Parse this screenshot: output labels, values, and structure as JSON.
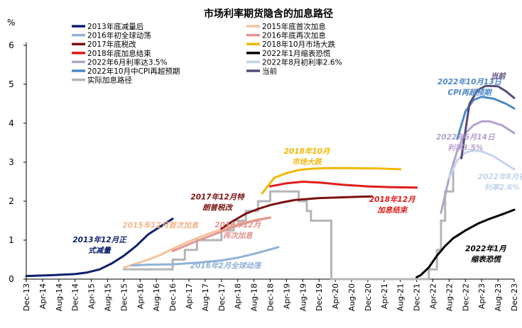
{
  "chart_data": {
    "type": "line",
    "title": "市场利率期货隐含的加息路径",
    "ylabel": "%",
    "ylim": [
      0,
      6
    ],
    "yticks": [
      "0",
      "1",
      "2",
      "3",
      "4",
      "5",
      "6"
    ],
    "xlim": [
      "2013-12",
      "2023-12"
    ],
    "xticks": [
      "Dec-13",
      "Apr-14",
      "Aug-14",
      "Dec-14",
      "Apr-15",
      "Aug-15",
      "Dec-15",
      "Apr-16",
      "Aug-16",
      "Dec-16",
      "Apr-17",
      "Aug-17",
      "Dec-17",
      "Apr-18",
      "Aug-18",
      "Dec-18",
      "Apr-19",
      "Aug-19",
      "Dec-19",
      "Apr-20",
      "Aug-20",
      "Dec-20",
      "Apr-21",
      "Aug-21",
      "Dec-21",
      "Apr-22",
      "Aug-22",
      "Dec-22",
      "Apr-23",
      "Aug-23",
      "Dec-23"
    ],
    "grid": false,
    "legend_position": "top-left",
    "series": [
      {
        "name": "2013年底减量后",
        "color": "#0d1f6d",
        "width": 3,
        "points": [
          [
            "2013-12",
            0.08
          ],
          [
            "2014-06",
            0.1
          ],
          [
            "2014-12",
            0.13
          ],
          [
            "2015-03",
            0.17
          ],
          [
            "2015-06",
            0.25
          ],
          [
            "2015-09",
            0.4
          ],
          [
            "2015-12",
            0.6
          ],
          [
            "2016-03",
            0.85
          ],
          [
            "2016-06",
            1.15
          ],
          [
            "2016-09",
            1.35
          ],
          [
            "2016-12",
            1.55
          ]
        ]
      },
      {
        "name": "2015年底首次加息",
        "color": "#f5c29a",
        "width": 3,
        "points": [
          [
            "2015-12",
            0.3
          ],
          [
            "2016-03",
            0.4
          ],
          [
            "2016-06",
            0.5
          ],
          [
            "2016-09",
            0.62
          ],
          [
            "2016-12",
            0.78
          ],
          [
            "2017-03",
            0.92
          ],
          [
            "2017-06",
            1.05
          ],
          [
            "2017-09",
            1.17
          ],
          [
            "2017-12",
            1.28
          ],
          [
            "2018-03",
            1.38
          ],
          [
            "2018-06",
            1.46
          ],
          [
            "2018-09",
            1.53
          ],
          [
            "2018-12",
            1.58
          ]
        ]
      },
      {
        "name": "2016年初全球动荡",
        "color": "#8fb1d6",
        "width": 3,
        "points": [
          [
            "2016-02",
            0.35
          ],
          [
            "2016-06",
            0.37
          ],
          [
            "2016-12",
            0.38
          ],
          [
            "2017-06",
            0.42
          ],
          [
            "2017-12",
            0.48
          ],
          [
            "2018-04",
            0.55
          ],
          [
            "2018-08",
            0.65
          ],
          [
            "2019-02",
            0.82
          ]
        ]
      },
      {
        "name": "2016年底再次加息",
        "color": "#e29490",
        "width": 3,
        "points": [
          [
            "2016-12",
            0.72
          ],
          [
            "2017-03",
            0.85
          ],
          [
            "2017-06",
            0.98
          ],
          [
            "2017-09",
            1.1
          ],
          [
            "2017-12",
            1.22
          ],
          [
            "2018-03",
            1.34
          ],
          [
            "2018-06",
            1.44
          ],
          [
            "2018-09",
            1.52
          ],
          [
            "2018-12",
            1.58
          ]
        ]
      },
      {
        "name": "2017年底税改",
        "color": "#7a1111",
        "width": 3,
        "points": [
          [
            "2017-12",
            1.3
          ],
          [
            "2018-03",
            1.5
          ],
          [
            "2018-06",
            1.68
          ],
          [
            "2018-09",
            1.8
          ],
          [
            "2018-12",
            1.9
          ],
          [
            "2019-03",
            1.97
          ],
          [
            "2019-06",
            2.03
          ],
          [
            "2019-12",
            2.08
          ],
          [
            "2020-06",
            2.1
          ],
          [
            "2020-12",
            2.12
          ],
          [
            "2021-01",
            2.12
          ]
        ]
      },
      {
        "name": "2018年10月市场大跌",
        "color": "#f2b705",
        "width": 3,
        "points": [
          [
            "2018-10",
            2.2
          ],
          [
            "2019-01",
            2.6
          ],
          [
            "2019-04",
            2.72
          ],
          [
            "2019-07",
            2.8
          ],
          [
            "2019-10",
            2.83
          ],
          [
            "2020-02",
            2.85
          ],
          [
            "2020-08",
            2.85
          ],
          [
            "2021-02",
            2.84
          ],
          [
            "2021-08",
            2.82
          ]
        ]
      },
      {
        "name": "2018年底加息结束",
        "color": "#e21b1b",
        "width": 3,
        "points": [
          [
            "2018-12",
            2.38
          ],
          [
            "2019-04",
            2.46
          ],
          [
            "2019-08",
            2.5
          ],
          [
            "2019-12",
            2.48
          ],
          [
            "2020-06",
            2.42
          ],
          [
            "2020-12",
            2.38
          ],
          [
            "2021-06",
            2.36
          ],
          [
            "2021-12",
            2.35
          ]
        ]
      },
      {
        "name": "2022年1月缩表恐慌",
        "color": "#000000",
        "width": 3,
        "points": [
          [
            "2021-12",
            0.05
          ],
          [
            "2022-01",
            0.1
          ],
          [
            "2022-03",
            0.3
          ],
          [
            "2022-05",
            0.6
          ],
          [
            "2022-07",
            0.85
          ],
          [
            "2022-09",
            1.05
          ],
          [
            "2022-12",
            1.25
          ],
          [
            "2023-03",
            1.42
          ],
          [
            "2023-06",
            1.55
          ],
          [
            "2023-09",
            1.66
          ],
          [
            "2023-12",
            1.78
          ]
        ]
      },
      {
        "name": "2022年6月利率达3.5%",
        "color": "#b3a2cc",
        "width": 3,
        "points": [
          [
            "2022-06",
            1.7
          ],
          [
            "2022-08",
            2.6
          ],
          [
            "2022-10",
            3.3
          ],
          [
            "2022-12",
            3.75
          ],
          [
            "2023-02",
            3.95
          ],
          [
            "2023-04",
            4.05
          ],
          [
            "2023-06",
            4.05
          ],
          [
            "2023-09",
            3.95
          ],
          [
            "2023-12",
            3.75
          ]
        ]
      },
      {
        "name": "2022年8月初利率2.6%",
        "color": "#c3d4ea",
        "width": 3,
        "points": [
          [
            "2022-08",
            2.6
          ],
          [
            "2022-10",
            3.05
          ],
          [
            "2022-12",
            3.25
          ],
          [
            "2023-02",
            3.3
          ],
          [
            "2023-04",
            3.28
          ],
          [
            "2023-07",
            3.15
          ],
          [
            "2023-10",
            2.95
          ],
          [
            "2023-12",
            2.82
          ]
        ]
      },
      {
        "name": "2022年10月中CPI再超预期",
        "color": "#4c88c8",
        "width": 3,
        "points": [
          [
            "2022-10",
            3.6
          ],
          [
            "2022-12",
            4.3
          ],
          [
            "2023-02",
            4.6
          ],
          [
            "2023-04",
            4.68
          ],
          [
            "2023-07",
            4.63
          ],
          [
            "2023-10",
            4.5
          ],
          [
            "2023-12",
            4.38
          ]
        ]
      },
      {
        "name": "当前",
        "color": "#5a4a7a",
        "width": 3,
        "points": [
          [
            "2022-11",
            3.1
          ],
          [
            "2022-12",
            3.8
          ],
          [
            "2023-01",
            4.5
          ],
          [
            "2023-03",
            4.85
          ],
          [
            "2023-05",
            4.96
          ],
          [
            "2023-08",
            4.95
          ],
          [
            "2023-10",
            4.82
          ],
          [
            "2023-12",
            4.65
          ]
        ]
      },
      {
        "name": "实际加息路径",
        "color": "#b5b5b5",
        "width": 3,
        "step": true,
        "points": [
          [
            "2015-12",
            0.25
          ],
          [
            "2016-12",
            0.25
          ],
          [
            "2016-12",
            0.5
          ],
          [
            "2017-03",
            0.5
          ],
          [
            "2017-03",
            0.75
          ],
          [
            "2017-06",
            0.75
          ],
          [
            "2017-06",
            1.0
          ],
          [
            "2017-12",
            1.0
          ],
          [
            "2017-12",
            1.25
          ],
          [
            "2018-03",
            1.25
          ],
          [
            "2018-03",
            1.5
          ],
          [
            "2018-06",
            1.5
          ],
          [
            "2018-06",
            1.75
          ],
          [
            "2018-09",
            1.75
          ],
          [
            "2018-09",
            2.0
          ],
          [
            "2018-12",
            2.0
          ],
          [
            "2018-12",
            2.25
          ],
          [
            "2019-07",
            2.25
          ],
          [
            "2019-07",
            2.0
          ],
          [
            "2019-09",
            2.0
          ],
          [
            "2019-09",
            1.75
          ],
          [
            "2019-10",
            1.75
          ],
          [
            "2019-10",
            1.5
          ],
          [
            "2020-03",
            1.5
          ],
          [
            "2020-03",
            0.0
          ],
          [
            "2022-03",
            0.0
          ],
          [
            "2022-03",
            0.25
          ],
          [
            "2022-05",
            0.25
          ],
          [
            "2022-05",
            0.75
          ],
          [
            "2022-06",
            0.75
          ],
          [
            "2022-06",
            1.5
          ],
          [
            "2022-07",
            1.5
          ],
          [
            "2022-07",
            2.25
          ],
          [
            "2022-09",
            2.25
          ],
          [
            "2022-09",
            3.0
          ]
        ]
      }
    ],
    "annotations": [
      {
        "lines": [
          "2013年12月正",
          "式减量"
        ],
        "color": "#0d1f6d",
        "x": "2015-06",
        "y": 0.95,
        "anchor": "middle"
      },
      {
        "lines": [
          "2015年12月首次加息"
        ],
        "color": "#f0b48a",
        "x": "2016-09",
        "y": 1.32,
        "anchor": "middle"
      },
      {
        "lines": [
          "2016年2月全球动荡"
        ],
        "color": "#8fb1d6",
        "x": "2018-01",
        "y": 0.28,
        "anchor": "middle"
      },
      {
        "lines": [
          "2016年12月",
          "再次加息"
        ],
        "color": "#e29490",
        "x": "2018-04",
        "y": 1.33,
        "anchor": "middle"
      },
      {
        "lines": [
          "2017年12月特",
          "朗普税改"
        ],
        "color": "#7a1111",
        "x": "2017-11",
        "y": 2.05,
        "anchor": "middle"
      },
      {
        "lines": [
          "2018年10月",
          "市场大跌"
        ],
        "color": "#f2b705",
        "x": "2019-09",
        "y": 3.22,
        "anchor": "middle"
      },
      {
        "lines": [
          "2018年12月",
          "加息结束"
        ],
        "color": "#e21b1b",
        "x": "2021-06",
        "y": 1.98,
        "anchor": "middle"
      },
      {
        "lines": [
          "2022年1月",
          "缩表恐慌"
        ],
        "color": "#000000",
        "x": "2023-05",
        "y": 0.72,
        "anchor": "middle"
      },
      {
        "lines": [
          "2022年6月14日",
          "利率3.5%"
        ],
        "color": "#b3a2cc",
        "x": "2022-12",
        "y": 3.58,
        "anchor": "middle"
      },
      {
        "lines": [
          "2022年8月初",
          "利率2.6%"
        ],
        "color": "#c3d4ea",
        "x": "2023-09",
        "y": 2.56,
        "anchor": "middle"
      },
      {
        "lines": [
          "2022年10月13日",
          "CPI再超预期"
        ],
        "color": "#4c88c8",
        "x": "2023-01",
        "y": 5.0,
        "anchor": "middle"
      },
      {
        "lines": [
          "当前"
        ],
        "color": "#5a4a7a",
        "x": "2023-08",
        "y": 5.15,
        "anchor": "middle"
      }
    ]
  }
}
